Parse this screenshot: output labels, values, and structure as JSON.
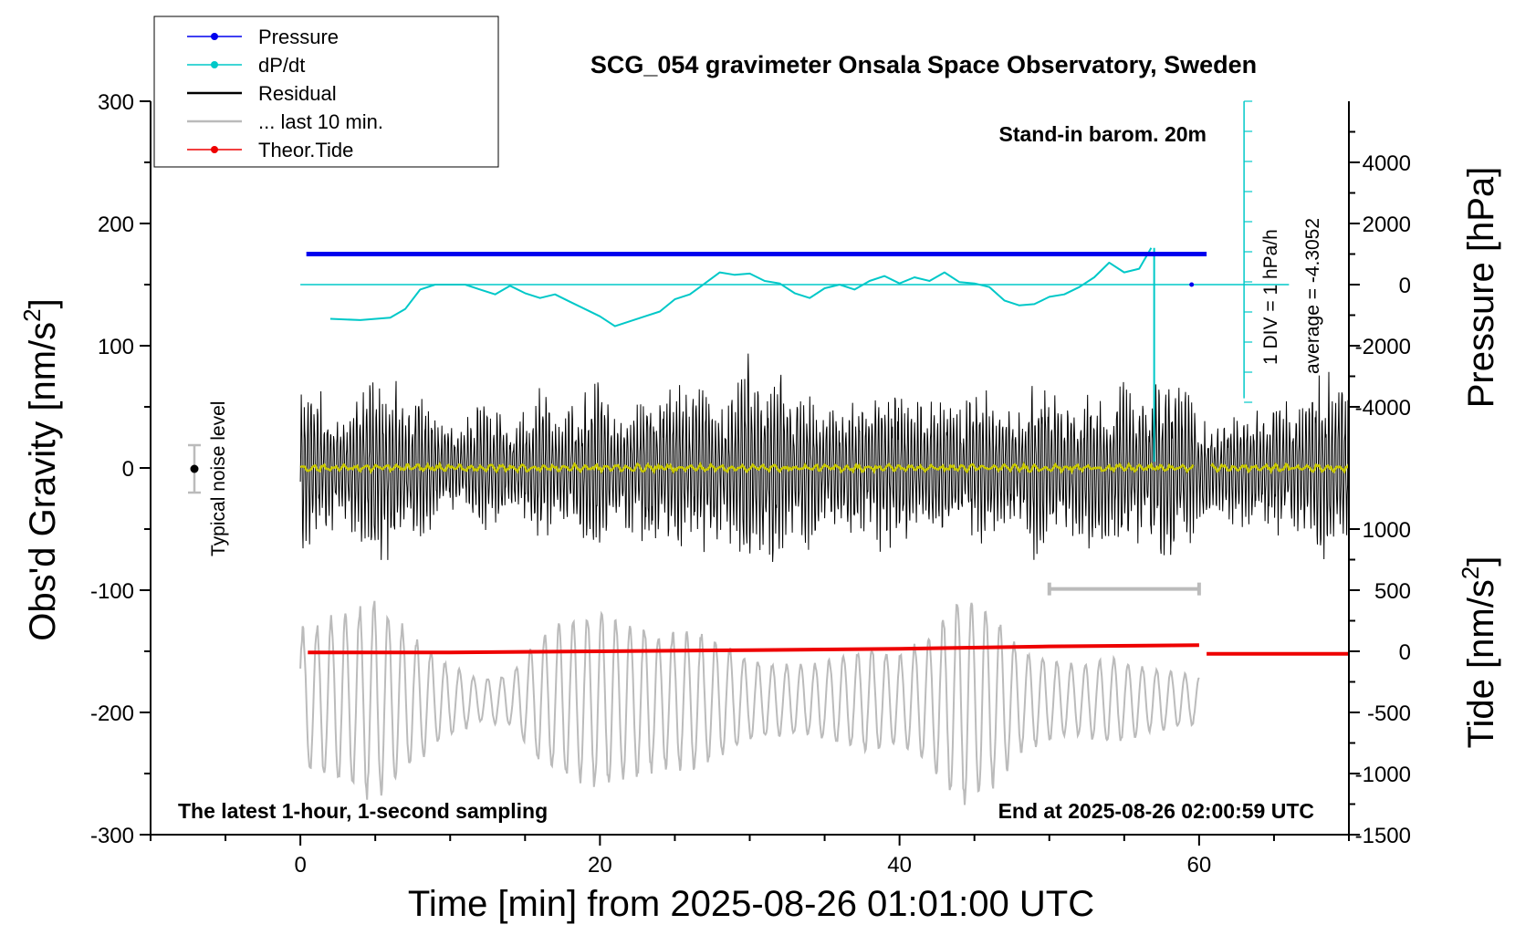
{
  "chart_data": {
    "type": "line",
    "title": "SCG_054 gravimeter Onsala Space Observatory, Sweden",
    "xlabel": "Time [min] from 2025-08-26 01:01:00 UTC",
    "ylabel_left": "Obs'd Gravity [nm/s²]",
    "ylabel_left_main": "Obs'd Gravity [nm/s",
    "ylabel_left_sup": "2",
    "ylabel_left_end": "]",
    "ylabel_right_top": "Pressure [hPa]",
    "ylabel_right_bottom": "Tide [nm/s²]",
    "ylabel_right_bottom_main": "Tide [nm/s",
    "ylabel_right_bottom_sup": "2",
    "ylabel_right_bottom_end": "]",
    "xlim": [
      -10,
      70
    ],
    "ylim_left": [
      -300,
      300
    ],
    "x_ticks": [
      0,
      20,
      40,
      60
    ],
    "y_ticks_left": [
      300,
      200,
      100,
      0,
      -100,
      -200,
      -300
    ],
    "y_ticks_right_pressure": [
      4000,
      2000,
      0,
      -2000,
      -4000
    ],
    "y_ticks_right_tide": [
      1000,
      500,
      0,
      -500,
      -1000,
      -1500
    ],
    "grid": false,
    "legend": {
      "position": "top-left",
      "entries": [
        {
          "name": "Pressure",
          "color": "#0000ee",
          "marker": true
        },
        {
          "name": "dP/dt",
          "color": "#00c8c8",
          "marker": true
        },
        {
          "name": "Residual",
          "color": "#000000",
          "marker": false
        },
        {
          "name": "... last 10 min.",
          "color": "#bbbbbb",
          "marker": false
        },
        {
          "name": "Theor.Tide",
          "color": "#ee0000",
          "marker": true
        }
      ]
    },
    "annotations": {
      "barometer": "Stand-in barom. 20m",
      "div_scale": "1 DIV = 1 hPa/h",
      "average": "average = -4.3052",
      "noise": "Typical noise level",
      "sampling": "The latest 1-hour, 1-second sampling",
      "end_time": "End at 2025-08-26 02:00:59 UTC"
    },
    "colors": {
      "pressure": "#0000ee",
      "dpdt": "#00c8c8",
      "residual": "#000000",
      "last10": "#bbbbbb",
      "tide": "#ee0000",
      "residual_smooth": "#c8c800"
    },
    "series": [
      {
        "name": "Pressure",
        "plotted_level_nm_s2": 175,
        "x_start": 0.4,
        "x_end": 60.5
      },
      {
        "name": "dP/dt",
        "baseline_nm_s2": 150,
        "x": [
          2,
          4,
          6,
          7,
          8,
          9,
          10,
          11,
          12,
          13,
          14,
          15,
          16,
          17,
          18,
          19,
          20,
          21,
          22,
          23,
          24,
          25,
          26,
          27,
          28,
          29,
          30,
          31,
          32,
          33,
          34,
          35,
          36,
          37,
          38,
          39,
          40,
          41,
          42,
          43,
          44,
          45,
          46,
          47,
          48,
          49,
          50,
          51,
          52,
          53,
          54,
          55,
          56,
          56.8
        ],
        "y_nm_s2": [
          122,
          121,
          123,
          130,
          146,
          150,
          150,
          150,
          146,
          142,
          149,
          143,
          139,
          142,
          136,
          130,
          124,
          116,
          120,
          124,
          128,
          138,
          142,
          151,
          160,
          158,
          159,
          153,
          151,
          143,
          139,
          147,
          150,
          146,
          153,
          157,
          151,
          156,
          153,
          160,
          152,
          151,
          148,
          137,
          133,
          134,
          140,
          142,
          148,
          156,
          168,
          160,
          163,
          180
        ],
        "spike_x": 57.0,
        "spike_bottom_nm_s2": 5,
        "marker_x": 59.5,
        "marker_nm_s2": 150
      },
      {
        "name": "Residual",
        "x_start": 0,
        "x_end": 70,
        "envelope_x": [
          0,
          2,
          3,
          4,
          5,
          6,
          7,
          8,
          9,
          10,
          11,
          12,
          13,
          14,
          15,
          16,
          17,
          18,
          19,
          20,
          21,
          22,
          23,
          24,
          25,
          26,
          27,
          28,
          29,
          30,
          31,
          32,
          33,
          34,
          35,
          36,
          37,
          38,
          39,
          40,
          41,
          42,
          43,
          44,
          45,
          46,
          47,
          48,
          49,
          50,
          51,
          52,
          53,
          54,
          55,
          56,
          57,
          58,
          59,
          60,
          61,
          62,
          63,
          64,
          65,
          66,
          67,
          68,
          69,
          70
        ],
        "envelope_amplitude": [
          80,
          55,
          45,
          70,
          82,
          88,
          55,
          72,
          45,
          35,
          45,
          60,
          52,
          40,
          50,
          72,
          45,
          58,
          65,
          75,
          40,
          55,
          70,
          60,
          75,
          65,
          80,
          55,
          72,
          100,
          80,
          95,
          55,
          70,
          50,
          45,
          62,
          55,
          75,
          65,
          50,
          72,
          60,
          58,
          62,
          70,
          58,
          48,
          85,
          70,
          62,
          58,
          72,
          60,
          80,
          65,
          70,
          85,
          72,
          52,
          35,
          45,
          55,
          48,
          60,
          55,
          52,
          78,
          88,
          80
        ],
        "smooth_level_nm_s2": 0
      },
      {
        "name": "... last 10 min.",
        "x_start": 0,
        "x_end": 60,
        "center_nm_s2": -190,
        "envelope_x": [
          0,
          3,
          5,
          8,
          10,
          12,
          14,
          16,
          18,
          20,
          22,
          24,
          26,
          28,
          30,
          32,
          34,
          36,
          38,
          40,
          42,
          44,
          46,
          48,
          50,
          52,
          54,
          56,
          58,
          60
        ],
        "envelope_amplitude": [
          60,
          75,
          85,
          50,
          30,
          18,
          22,
          55,
          68,
          75,
          68,
          58,
          60,
          50,
          35,
          30,
          30,
          38,
          45,
          40,
          55,
          90,
          78,
          45,
          35,
          30,
          38,
          30,
          25,
          20
        ]
      },
      {
        "name": "Theor.Tide",
        "x": [
          0.5,
          10,
          20,
          30,
          40,
          50,
          60,
          60.5,
          70
        ],
        "y_nm_s2": [
          -151,
          -151,
          -150,
          -149,
          -148,
          -146,
          -145,
          -152,
          -152
        ]
      }
    ],
    "last10_bar": {
      "x_start": 50,
      "x_end": 60,
      "y_nm_s2": -99
    }
  }
}
